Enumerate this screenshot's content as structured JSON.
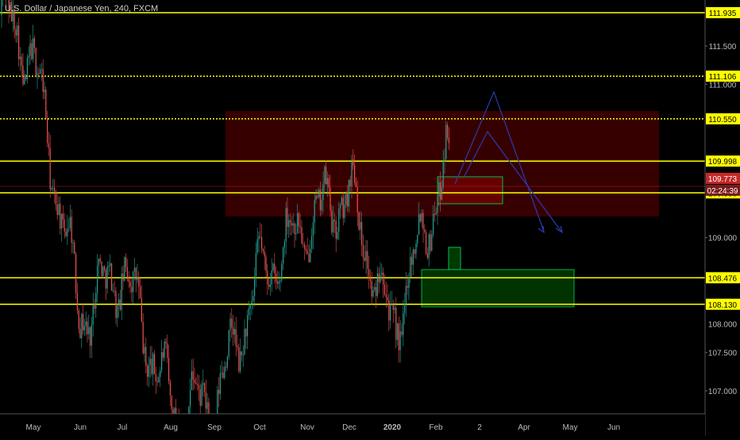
{
  "header": {
    "title": "U.S. Dollar / Japanese Yen, 240, FXCM"
  },
  "colors": {
    "background": "#000000",
    "level_line": "#ffff00",
    "candle_up": "#26a69a",
    "candle_down": "#ef5350",
    "resistance_zone": "#4a0000",
    "support_zone": "#003a00",
    "projection": "#2233aa",
    "price_badge": "#c62828"
  },
  "chart_data": {
    "type": "candlestick",
    "symbol": "U.S. Dollar / Japanese Yen",
    "interval": "240",
    "source": "FXCM",
    "x_labels": [
      "May",
      "Jun",
      "Jul",
      "Aug",
      "Sep",
      "Oct",
      "Nov",
      "Dec",
      "2020",
      "Feb",
      "2",
      "Apr",
      "May",
      "Jun"
    ],
    "y_ticks": [
      "111.500",
      "111.000",
      "109.000",
      "107.500",
      "107.000"
    ],
    "y_ticks_hidden": [
      "108.000"
    ],
    "ylim": [
      106.7,
      112.1
    ],
    "levels": [
      {
        "label": "111.935",
        "value": 111.935,
        "style": "solid"
      },
      {
        "label": "111.106",
        "value": 111.106,
        "style": "dotted"
      },
      {
        "label": "110.550",
        "value": 110.55,
        "style": "dotted"
      },
      {
        "label": "109.998",
        "value": 109.998,
        "style": "solid"
      },
      {
        "label": "109.583",
        "value": 109.583,
        "style": "solid"
      },
      {
        "label": "108.476",
        "value": 108.476,
        "style": "solid"
      },
      {
        "label": "108.130",
        "value": 108.13,
        "style": "solid"
      }
    ],
    "last_price": {
      "label": "109.773",
      "value": 109.773
    },
    "countdown": "02:24:39",
    "key_points": [
      {
        "x": "May 2019 start",
        "y": 111.9
      },
      {
        "x": "May",
        "y": 111.3
      },
      {
        "x": "Jun",
        "y": 108.0
      },
      {
        "x": "Jul",
        "y": 108.6
      },
      {
        "x": "Aug",
        "y": 106.8
      },
      {
        "x": "Sep",
        "y": 106.8
      },
      {
        "x": "Oct",
        "y": 108.5
      },
      {
        "x": "Nov",
        "y": 109.2
      },
      {
        "x": "Dec",
        "y": 109.6
      },
      {
        "x": "2020",
        "y": 107.8
      },
      {
        "x": "Feb",
        "y": 109.9
      }
    ]
  }
}
